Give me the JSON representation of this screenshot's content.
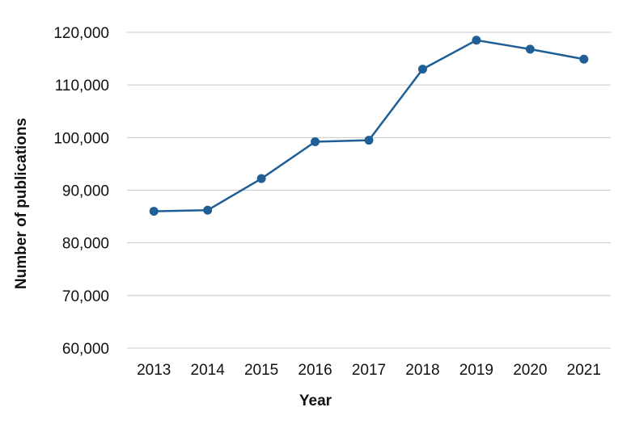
{
  "chart_data": {
    "type": "line",
    "title": "",
    "xlabel": "Year",
    "ylabel": "Number of publications",
    "categories": [
      "2013",
      "2014",
      "2015",
      "2016",
      "2017",
      "2018",
      "2019",
      "2020",
      "2021"
    ],
    "series": [
      {
        "values": [
          86000,
          86200,
          92200,
          99200,
          99500,
          113000,
          118500,
          116800,
          114900
        ],
        "color": "#1f5f96"
      }
    ],
    "ylim": [
      60000,
      120000
    ],
    "yticks": [
      60000,
      70000,
      80000,
      90000,
      100000,
      110000,
      120000
    ],
    "ytick_labels": [
      "60,000",
      "70,000",
      "80,000",
      "90,000",
      "100,000",
      "110,000",
      "120,000"
    ],
    "grid": true,
    "legend": "none"
  }
}
